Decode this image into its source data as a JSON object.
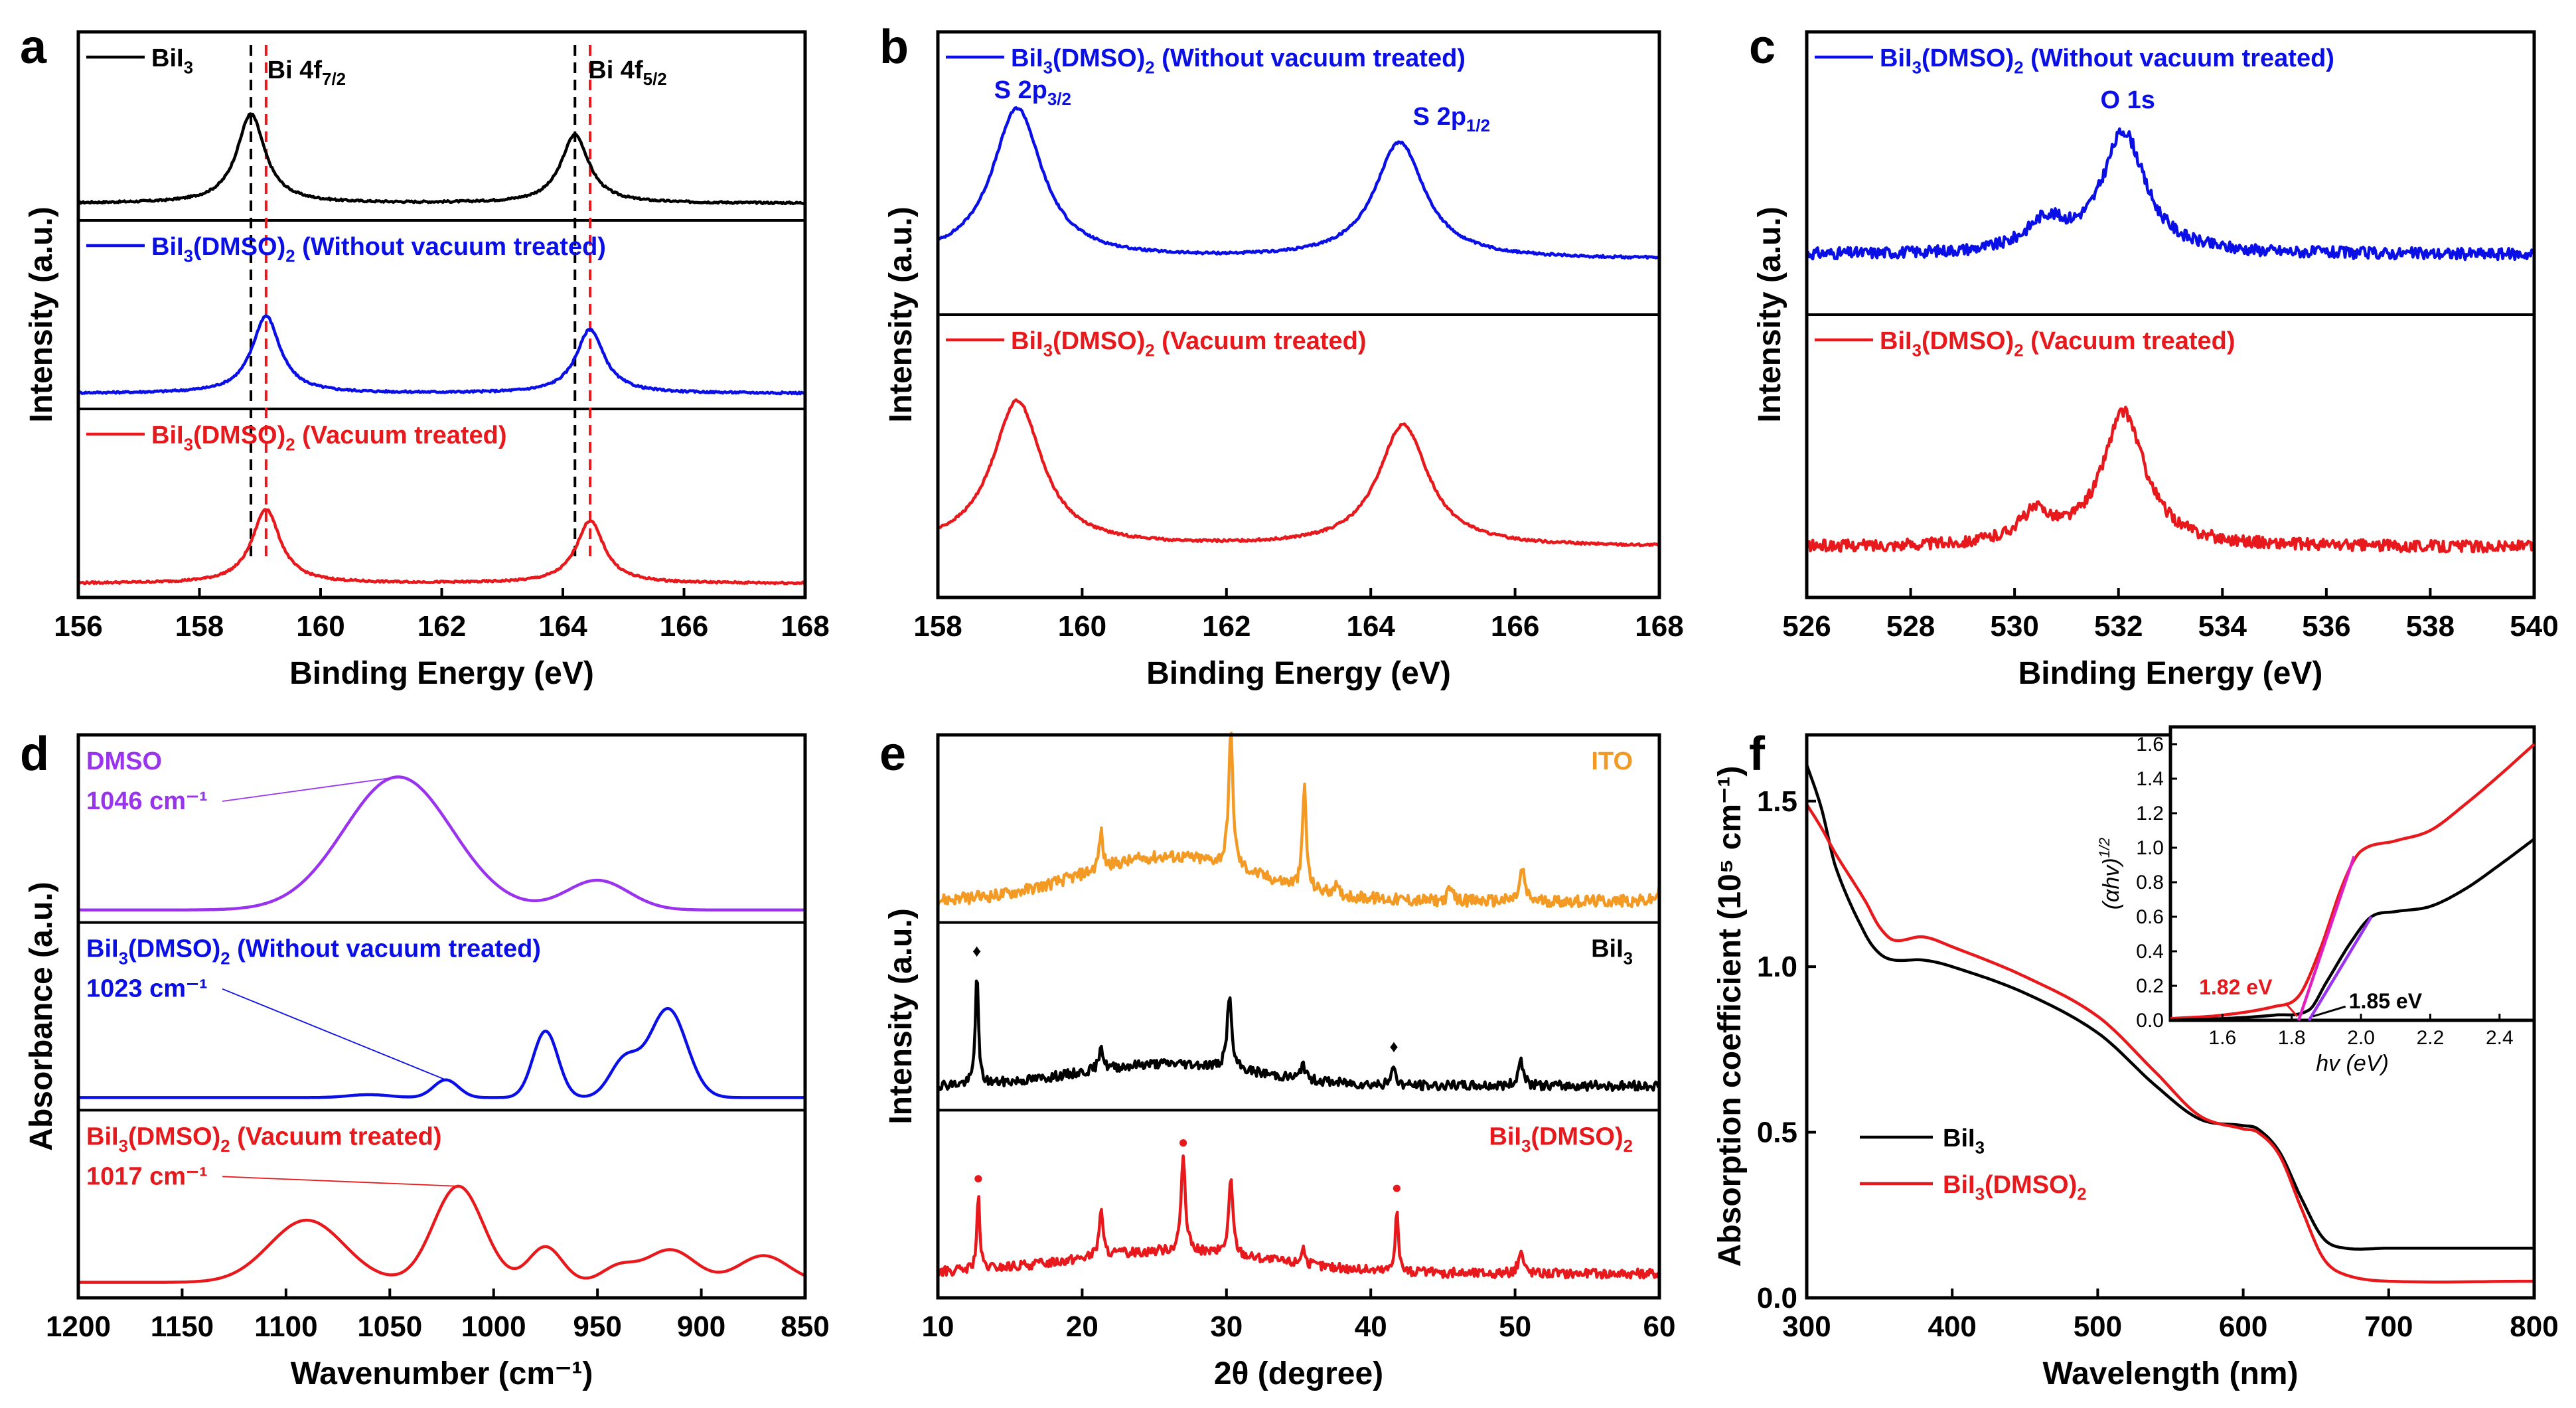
{
  "chart_data": [
    {
      "panel": "a",
      "type": "line",
      "title": "",
      "xlabel": "Binding Energy (eV)",
      "ylabel": "Intensity (a.u.)",
      "xlim": [
        156,
        168
      ],
      "xticks": [
        156,
        158,
        160,
        162,
        164,
        166,
        168
      ],
      "grid": false,
      "annotations": [
        {
          "text": "Bi 4f",
          "sub": "7/2",
          "x": 158.9
        },
        {
          "text": "Bi 4f",
          "sub": "5/2",
          "x": 164.2
        }
      ],
      "reference_lines": [
        {
          "x": 158.85,
          "color": "#000000"
        },
        {
          "x": 159.1,
          "color": "#e8191c"
        },
        {
          "x": 164.2,
          "color": "#000000"
        },
        {
          "x": 164.45,
          "color": "#e8191c"
        }
      ],
      "series": [
        {
          "name": "BiI3",
          "label_main": "BiI",
          "label_sub": "3",
          "label_rest": "",
          "color": "#000000",
          "baseline": 0.07,
          "peaks": [
            [
              158.85,
              0.6,
              0.28
            ],
            [
              164.2,
              0.46,
              0.28
            ]
          ]
        },
        {
          "name": "BiI3(DMSO)2 (Without vacuum treated)",
          "label_main": "BiI",
          "label_sub": "3",
          "label_rest": "(DMSO)",
          "label_sub2": "2",
          "label_tail": " (Without vacuum treated)",
          "color": "#0a0fe6",
          "baseline": 0.06,
          "peaks": [
            [
              159.1,
              0.52,
              0.28
            ],
            [
              164.45,
              0.43,
              0.28
            ]
          ]
        },
        {
          "name": "BiI3(DMSO)2 (Vacuum treated)",
          "label_main": "BiI",
          "label_sub": "3",
          "label_rest": "(DMSO)",
          "label_sub2": "2",
          "label_tail": " (Vacuum treated)",
          "color": "#e8191c",
          "baseline": 0.05,
          "peaks": [
            [
              159.1,
              0.5,
              0.28
            ],
            [
              164.45,
              0.42,
              0.28
            ]
          ]
        }
      ]
    },
    {
      "panel": "b",
      "type": "line",
      "title": "",
      "xlabel": "Binding Energy (eV)",
      "ylabel": "Intensity (a.u.)",
      "xlim": [
        158,
        168
      ],
      "xticks": [
        158,
        160,
        162,
        164,
        166,
        168
      ],
      "grid": false,
      "annotations": [
        {
          "text": "S 2p",
          "sub": "3/2",
          "x": 159.1
        },
        {
          "text": "S 2p",
          "sub": "1/2",
          "x": 164.4
        }
      ],
      "series": [
        {
          "name": "BiI3(DMSO)2 (Without vacuum treated)",
          "label_main": "BiI",
          "label_sub": "3",
          "label_rest": "(DMSO)",
          "label_sub2": "2",
          "label_tail": " (Without vacuum treated)",
          "color": "#0a0fe6",
          "baseline": 0.2,
          "peaks": [
            [
              159.1,
              0.62,
              0.42
            ],
            [
              164.4,
              0.48,
              0.42
            ]
          ]
        },
        {
          "name": "BiI3(DMSO)2 (Vacuum treated)",
          "label_main": "BiI",
          "label_sub": "3",
          "label_rest": "(DMSO)",
          "label_sub2": "2",
          "label_tail": " (Vacuum treated)",
          "color": "#e8191c",
          "baseline": 0.18,
          "peaks": [
            [
              159.1,
              0.6,
              0.42
            ],
            [
              164.45,
              0.5,
              0.42
            ]
          ]
        }
      ]
    },
    {
      "panel": "c",
      "type": "line",
      "title": "",
      "xlabel": "Binding Energy (eV)",
      "ylabel": "Intensity (a.u.)",
      "xlim": [
        526,
        540
      ],
      "xticks": [
        526,
        528,
        530,
        532,
        534,
        536,
        538,
        540
      ],
      "grid": false,
      "annotations": [
        {
          "text": "O 1s",
          "sub": "",
          "x": 532.1
        }
      ],
      "series": [
        {
          "name": "BiI3(DMSO)2 (Without vacuum treated)",
          "label_main": "BiI",
          "label_sub": "3",
          "label_rest": "(DMSO)",
          "label_sub2": "2",
          "label_tail": " (Without vacuum treated)",
          "color": "#0a0fe6",
          "baseline": 0.22,
          "peaks": [
            [
              532.1,
              0.5,
              0.5
            ],
            [
              530.6,
              0.12,
              0.45
            ]
          ]
        },
        {
          "name": "BiI3(DMSO)2 (Vacuum treated)",
          "label_main": "BiI",
          "label_sub": "3",
          "label_rest": "(DMSO)",
          "label_sub2": "2",
          "label_tail": " (Vacuum treated)",
          "color": "#e8191c",
          "baseline": 0.18,
          "peaks": [
            [
              532.1,
              0.55,
              0.5
            ],
            [
              530.4,
              0.12,
              0.4
            ]
          ]
        }
      ]
    },
    {
      "panel": "d",
      "type": "line",
      "title": "",
      "xlabel": "Wavenumber (cm⁻¹)",
      "ylabel": "Absorbance (a.u.)",
      "xlim": [
        1200,
        850
      ],
      "xticks": [
        1200,
        1150,
        1100,
        1050,
        1000,
        950,
        900,
        850
      ],
      "grid": false,
      "series": [
        {
          "name": "DMSO",
          "label_main": "DMSO",
          "peak_label": "1046 cm⁻¹",
          "peak_x": 1046,
          "color": "#9933ee",
          "baseline": 0.04,
          "peaks": [
            [
              1046,
              0.9,
              26
            ],
            [
              950,
              0.2,
              15
            ]
          ]
        },
        {
          "name": "BiI3(DMSO)2 (Without vacuum treated)",
          "label_main": "BiI",
          "label_sub": "3",
          "label_rest": "(DMSO)",
          "label_sub2": "2",
          "label_tail": " (Without vacuum treated)",
          "peak_label": "1023 cm⁻¹",
          "peak_x": 1023,
          "color": "#0a0fe6",
          "baseline": 0.04,
          "peaks": [
            [
              1023,
              0.12,
              6
            ],
            [
              975,
              0.45,
              6
            ],
            [
              937,
              0.25,
              7
            ],
            [
              916,
              0.6,
              9
            ],
            [
              1060,
              0.02,
              10
            ]
          ]
        },
        {
          "name": "BiI3(DMSO)2 (Vacuum treated)",
          "label_main": "BiI",
          "label_sub": "3",
          "label_rest": "(DMSO)",
          "label_sub2": "2",
          "label_tail": " (Vacuum treated)",
          "peak_label": "1017 cm⁻¹",
          "peak_x": 1017,
          "color": "#e8191c",
          "baseline": 0.06,
          "peaks": [
            [
              1090,
              0.42,
              18
            ],
            [
              1017,
              0.65,
              12
            ],
            [
              975,
              0.24,
              8
            ],
            [
              915,
              0.22,
              12
            ],
            [
              870,
              0.18,
              12
            ],
            [
              940,
              0.1,
              8
            ]
          ]
        }
      ]
    },
    {
      "panel": "e",
      "type": "line",
      "title": "",
      "xlabel": "2θ (degree)",
      "ylabel": "Intensity (a.u.)",
      "xlim": [
        10,
        60
      ],
      "xticks": [
        10,
        20,
        30,
        40,
        50,
        60
      ],
      "grid": false,
      "series": [
        {
          "name": "ITO",
          "label_main": "ITO",
          "color": "#f39a25",
          "baseline": 0.1,
          "hump": [
            26,
            0.3,
            6
          ],
          "noise": 0.05,
          "peaks": [
            [
              21.3,
              0.25,
              0.15
            ],
            [
              30.3,
              0.9,
              0.18
            ],
            [
              35.4,
              0.7,
              0.15
            ],
            [
              37.5,
              0.06,
              0.2
            ],
            [
              45.5,
              0.08,
              0.2
            ],
            [
              50.5,
              0.22,
              0.2
            ],
            [
              60,
              0.08,
              0.2
            ]
          ],
          "markers": []
        },
        {
          "name": "BiI3",
          "label_main": "BiI",
          "label_sub": "3",
          "color": "#000000",
          "baseline": 0.12,
          "hump": [
            26,
            0.15,
            6
          ],
          "noise": 0.04,
          "peaks": [
            [
              12.7,
              0.78,
              0.12
            ],
            [
              21.3,
              0.18,
              0.15
            ],
            [
              30.2,
              0.5,
              0.18
            ],
            [
              35.3,
              0.12,
              0.15
            ],
            [
              41.6,
              0.14,
              0.15
            ],
            [
              50.4,
              0.18,
              0.2
            ]
          ],
          "markers": [
            {
              "x": 12.7,
              "symbol": "♦"
            },
            {
              "x": 41.6,
              "symbol": "♦"
            }
          ]
        },
        {
          "name": "BiI3(DMSO)2",
          "label_main": "BiI",
          "label_sub": "3",
          "label_rest": "(DMSO)",
          "label_sub2": "2",
          "color": "#e8191c",
          "baseline": 0.12,
          "hump": [
            26,
            0.15,
            7
          ],
          "noise": 0.04,
          "peaks": [
            [
              12.8,
              0.5,
              0.12
            ],
            [
              21.3,
              0.32,
              0.15
            ],
            [
              27.0,
              0.62,
              0.18
            ],
            [
              30.3,
              0.5,
              0.18
            ],
            [
              35.3,
              0.12,
              0.15
            ],
            [
              41.8,
              0.45,
              0.12
            ],
            [
              50.4,
              0.15,
              0.2
            ]
          ],
          "markers": [
            {
              "x": 12.8,
              "symbol": "●"
            },
            {
              "x": 27.0,
              "symbol": "●"
            },
            {
              "x": 41.8,
              "symbol": "●"
            }
          ]
        }
      ]
    },
    {
      "panel": "f",
      "type": "line",
      "title": "",
      "xlabel": "Wavelength (nm)",
      "ylabel": "Absorption coefficient (10⁵ cm⁻¹)",
      "xlim": [
        300,
        800
      ],
      "ylim": [
        0.0,
        1.7
      ],
      "xticks": [
        300,
        400,
        500,
        600,
        700,
        800
      ],
      "yticks": [
        0.0,
        0.5,
        1.0,
        1.5
      ],
      "ytick_labels": [
        "0.0",
        "0.5",
        "1.0",
        "1.5"
      ],
      "grid": false,
      "legend_position": "bottom-left",
      "series": [
        {
          "name": "BiI3",
          "label_main": "BiI",
          "label_sub": "3",
          "color": "#000000",
          "x": [
            300,
            310,
            320,
            340,
            350,
            360,
            380,
            400,
            450,
            500,
            540,
            570,
            600,
            610,
            625,
            640,
            655,
            670,
            700,
            800
          ],
          "y": [
            1.61,
            1.48,
            1.3,
            1.1,
            1.04,
            1.02,
            1.02,
            1.0,
            0.92,
            0.8,
            0.64,
            0.54,
            0.52,
            0.51,
            0.44,
            0.3,
            0.18,
            0.15,
            0.15,
            0.15
          ]
        },
        {
          "name": "BiI3(DMSO)2",
          "label_main": "BiI",
          "label_sub": "3",
          "label_rest": "(DMSO)",
          "label_sub2": "2",
          "color": "#e8191c",
          "x": [
            300,
            310,
            320,
            340,
            350,
            360,
            380,
            400,
            450,
            500,
            540,
            570,
            600,
            610,
            625,
            640,
            655,
            670,
            700,
            800
          ],
          "y": [
            1.49,
            1.42,
            1.34,
            1.2,
            1.12,
            1.08,
            1.09,
            1.06,
            0.97,
            0.85,
            0.68,
            0.55,
            0.51,
            0.5,
            0.43,
            0.27,
            0.12,
            0.07,
            0.05,
            0.05
          ]
        }
      ],
      "inset": {
        "type": "line",
        "xlabel": "hv (eV)",
        "ylabel": "(αhv)¹ᐟ²",
        "ylabel_main": "(αhv)",
        "ylabel_sup": "1/2",
        "xlim": [
          1.45,
          2.5
        ],
        "ylim": [
          0.0,
          1.7
        ],
        "xticks": [
          1.6,
          1.8,
          2.0,
          2.2,
          2.4
        ],
        "xtick_labels": [
          "1.6",
          "1.8",
          "2.0",
          "2.2",
          "2.4"
        ],
        "yticks": [
          0.0,
          0.2,
          0.4,
          0.6,
          0.8,
          1.0,
          1.2,
          1.4,
          1.6
        ],
        "ytick_labels": [
          "0.0",
          "0.2",
          "0.4",
          "0.6",
          "0.8",
          "1.0",
          "1.2",
          "1.4",
          "1.6"
        ],
        "annotations": [
          {
            "text": "1.82 eV",
            "x": 1.82,
            "color": "#e8191c",
            "side": "left"
          },
          {
            "text": "1.85 eV",
            "x": 1.85,
            "color": "#000000",
            "side": "right"
          }
        ],
        "tangents": [
          {
            "x": [
              1.82,
              1.98
            ],
            "y": [
              0.0,
              0.95
            ],
            "color": "#e020c0"
          },
          {
            "x": [
              1.85,
              2.03
            ],
            "y": [
              0.0,
              0.6
            ],
            "color": "#9933ee"
          }
        ],
        "series": [
          {
            "name": "BiI3(DMSO)2",
            "color": "#e8191c",
            "x": [
              1.45,
              1.6,
              1.75,
              1.82,
              1.88,
              1.95,
              2.0,
              2.1,
              2.2,
              2.3,
              2.4,
              2.5
            ],
            "y": [
              0.01,
              0.03,
              0.08,
              0.14,
              0.4,
              0.8,
              0.98,
              1.04,
              1.1,
              1.25,
              1.42,
              1.6
            ]
          },
          {
            "name": "BiI3",
            "color": "#000000",
            "x": [
              1.45,
              1.6,
              1.75,
              1.85,
              1.9,
              1.97,
              2.03,
              2.1,
              2.2,
              2.3,
              2.4,
              2.5
            ],
            "y": [
              0.0,
              0.01,
              0.03,
              0.06,
              0.22,
              0.45,
              0.6,
              0.63,
              0.66,
              0.76,
              0.9,
              1.05
            ]
          }
        ]
      }
    }
  ],
  "panel_letters": [
    "a",
    "b",
    "c",
    "d",
    "e",
    "f"
  ]
}
